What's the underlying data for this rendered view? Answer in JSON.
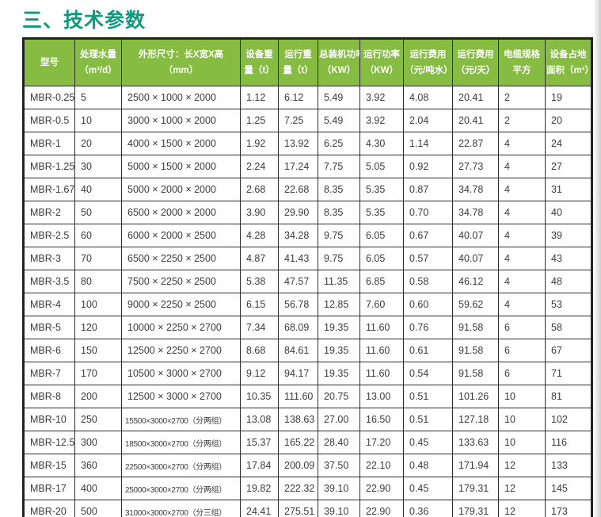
{
  "title": "三、技术参数",
  "colors": {
    "title": "#0d9a7d",
    "header_bg": "#85bc41",
    "header_text": "#ffffff",
    "border": "#2e2e2e",
    "cell_text": "#3a3a3a"
  },
  "table": {
    "columns": [
      {
        "id": "model",
        "label": "型号",
        "label_lines": [
          "型号"
        ]
      },
      {
        "id": "capacity",
        "label": "处理水量（m³/d）",
        "label_lines": [
          "处理水量",
          "（m³/d）"
        ]
      },
      {
        "id": "dimensions",
        "label": "外形尺寸：长X宽X高（mm）",
        "label_lines": [
          "外形尺寸：长X宽X高",
          "（mm）"
        ]
      },
      {
        "id": "equipment-weight",
        "label": "设备重量（t）",
        "label_lines": [
          "设备重",
          "量（t）"
        ]
      },
      {
        "id": "operating-weight",
        "label": "运行重量（t）",
        "label_lines": [
          "运行重",
          "量（t）"
        ]
      },
      {
        "id": "installed-power",
        "label": "总装机功率（KW）",
        "label_lines": [
          "总装机功率",
          "（KW）"
        ]
      },
      {
        "id": "operating-power",
        "label": "运行功率（KW）",
        "label_lines": [
          "运行功率",
          "（KW）"
        ]
      },
      {
        "id": "cost-per-ton",
        "label": "运行费用（元/吨水）",
        "label_lines": [
          "运行费用",
          "（元/吨水）"
        ]
      },
      {
        "id": "cost-per-day",
        "label": "运行费用（元/天）",
        "label_lines": [
          "运行费用",
          "（元/天）"
        ]
      },
      {
        "id": "cable-spec",
        "label": "电缆规格平方",
        "label_lines": [
          "电缆规格",
          "平方"
        ]
      },
      {
        "id": "footprint",
        "label": "设备占地面积（m²）",
        "label_lines": [
          "设备占地",
          "面积（m²）"
        ]
      }
    ],
    "rows": [
      [
        "MBR-0.25",
        "5",
        "2500 × 1000 × 2000",
        "1.12",
        "6.12",
        "5.49",
        "3.92",
        "4.08",
        "20.41",
        "2",
        "19"
      ],
      [
        "MBR-0.5",
        "10",
        "3000 × 1000 × 2000",
        "1.25",
        "7.25",
        "5.49",
        "3.92",
        "2.04",
        "20.41",
        "2",
        "20"
      ],
      [
        "MBR-1",
        "20",
        "4000 × 1500 × 2000",
        "1.92",
        "13.92",
        "6.25",
        "4.30",
        "1.14",
        "22.87",
        "4",
        "24"
      ],
      [
        "MBR-1.25",
        "30",
        "5000 × 1500 × 2000",
        "2.24",
        "17.24",
        "7.75",
        "5.05",
        "0.92",
        "27.73",
        "4",
        "27"
      ],
      [
        "MBR-1.67",
        "40",
        "5000 × 2000 × 2000",
        "2.68",
        "22.68",
        "8.35",
        "5.35",
        "0.87",
        "34.78",
        "4",
        "31"
      ],
      [
        "MBR-2",
        "50",
        "6500 × 2000 × 2000",
        "3.90",
        "29.90",
        "8.35",
        "5.35",
        "0.70",
        "34.78",
        "4",
        "40"
      ],
      [
        "MBR-2.5",
        "60",
        "6000 × 2000 × 2500",
        "4.28",
        "34.28",
        "9.75",
        "6.05",
        "0.67",
        "40.07",
        "4",
        "39"
      ],
      [
        "MBR-3",
        "70",
        "6500 × 2250 × 2500",
        "4.87",
        "41.43",
        "9.75",
        "6.05",
        "0.57",
        "40.07",
        "4",
        "43"
      ],
      [
        "MBR-3.5",
        "80",
        "7500 × 2250 × 2500",
        "5.38",
        "47.57",
        "11.35",
        "6.85",
        "0.58",
        "46.12",
        "4",
        "48"
      ],
      [
        "MBR-4",
        "100",
        "9000 × 2250 × 2500",
        "6.15",
        "56.78",
        "12.85",
        "7.60",
        "0.60",
        "59.62",
        "4",
        "53"
      ],
      [
        "MBR-5",
        "120",
        "10000 × 2250 × 2700",
        "7.34",
        "68.09",
        "19.35",
        "11.60",
        "0.76",
        "91.58",
        "6",
        "58"
      ],
      [
        "MBR-6",
        "150",
        "12500 × 2250 × 2700",
        "8.68",
        "84.61",
        "19.35",
        "11.60",
        "0.61",
        "91.58",
        "6",
        "67"
      ],
      [
        "MBR-7",
        "170",
        "10500 × 3000 × 2700",
        "9.12",
        "94.17",
        "19.35",
        "11.60",
        "0.54",
        "91.58",
        "6",
        "71"
      ],
      [
        "MBR-8",
        "200",
        "12500 × 3000 × 2700",
        "10.35",
        "111.60",
        "20.75",
        "13.00",
        "0.51",
        "101.26",
        "10",
        "81"
      ],
      [
        "MBR-10",
        "250",
        "15500×3000×2700（分两组）",
        "13.08",
        "138.63",
        "27.00",
        "16.50",
        "0.51",
        "127.18",
        "10",
        "102"
      ],
      [
        "MBR-12.5",
        "300",
        "18500×3000×2700（分两组）",
        "15.37",
        "165.22",
        "28.40",
        "17.20",
        "0.45",
        "133.63",
        "10",
        "116"
      ],
      [
        "MBR-15",
        "360",
        "22500×3000×2700（分两组）",
        "17.84",
        "200.09",
        "37.50",
        "22.10",
        "0.48",
        "171.94",
        "12",
        "133"
      ],
      [
        "MBR-17",
        "400",
        "25000×3000×2700（分两组）",
        "19.82",
        "222.32",
        "39.10",
        "22.90",
        "0.45",
        "179.31",
        "12",
        "145"
      ],
      [
        "MBR-20",
        "500",
        "31000×3000×2700（分三组）",
        "24.41",
        "275.51",
        "39.10",
        "22.90",
        "0.36",
        "179.31",
        "12",
        "173"
      ]
    ]
  }
}
